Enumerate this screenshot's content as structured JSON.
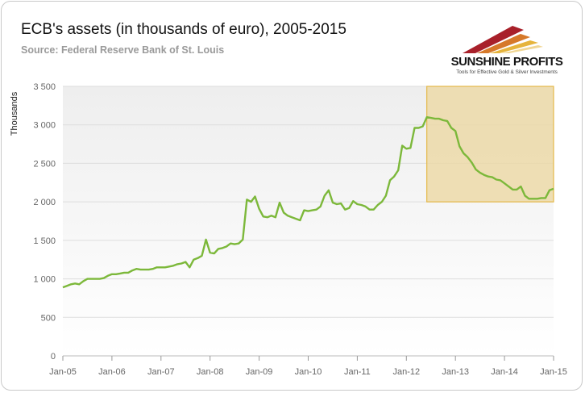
{
  "header": {
    "title": "ECB's assets (in thousands of euro), 2005-2015",
    "subtitle": "Source: Federal Reserve Bank of St. Louis"
  },
  "logo": {
    "name": "SUNSHINE PROFITS",
    "tagline": "Tools for Effective Gold & Silver Investments"
  },
  "colors": {
    "line": "#7cb83a",
    "highlight_fill": "#ecd9a8",
    "highlight_stroke": "#e4b94a",
    "grid": "#dddddd",
    "plot_bg_top": "#eeeeee",
    "plot_bg_bottom": "#ffffff"
  },
  "chart_data": {
    "type": "line",
    "ylabel": "Thousands",
    "xlabel": "",
    "ylim": [
      0,
      3500
    ],
    "yticks": [
      0,
      500,
      1000,
      1500,
      2000,
      2500,
      3000,
      3500
    ],
    "ytick_labels": [
      "0",
      "500",
      "1 000",
      "1 500",
      "2 000",
      "2 500",
      "3 000",
      "3 500"
    ],
    "xlim": [
      "2005-01",
      "2015-01"
    ],
    "xtick_labels": [
      "Jan-05",
      "Jan-06",
      "Jan-07",
      "Jan-08",
      "Jan-09",
      "Jan-10",
      "Jan-11",
      "Jan-12",
      "Jan-13",
      "Jan-14",
      "Jan-15"
    ],
    "grid": true,
    "highlight_region": {
      "x": [
        "2012-06",
        "2015-01"
      ],
      "y": [
        2000,
        3500
      ]
    },
    "series": [
      {
        "x": [
          "2005-01",
          "2005-02",
          "2005-03",
          "2005-04",
          "2005-05",
          "2005-06",
          "2005-07",
          "2005-08",
          "2005-09",
          "2005-10",
          "2005-11",
          "2005-12",
          "2006-01",
          "2006-02",
          "2006-03",
          "2006-04",
          "2006-05",
          "2006-06",
          "2006-07",
          "2006-08",
          "2006-09",
          "2006-10",
          "2006-11",
          "2006-12",
          "2007-01",
          "2007-02",
          "2007-03",
          "2007-04",
          "2007-05",
          "2007-06",
          "2007-07",
          "2007-08",
          "2007-09",
          "2007-10",
          "2007-11",
          "2007-12",
          "2008-01",
          "2008-02",
          "2008-03",
          "2008-04",
          "2008-05",
          "2008-06",
          "2008-07",
          "2008-08",
          "2008-09",
          "2008-10",
          "2008-11",
          "2008-12",
          "2009-01",
          "2009-02",
          "2009-03",
          "2009-04",
          "2009-05",
          "2009-06",
          "2009-07",
          "2009-08",
          "2009-09",
          "2009-10",
          "2009-11",
          "2009-12",
          "2010-01",
          "2010-02",
          "2010-03",
          "2010-04",
          "2010-05",
          "2010-06",
          "2010-07",
          "2010-08",
          "2010-09",
          "2010-10",
          "2010-11",
          "2010-12",
          "2011-01",
          "2011-02",
          "2011-03",
          "2011-04",
          "2011-05",
          "2011-06",
          "2011-07",
          "2011-08",
          "2011-09",
          "2011-10",
          "2011-11",
          "2011-12",
          "2012-01",
          "2012-02",
          "2012-03",
          "2012-04",
          "2012-05",
          "2012-06",
          "2012-07",
          "2012-08",
          "2012-09",
          "2012-10",
          "2012-11",
          "2012-12",
          "2013-01",
          "2013-02",
          "2013-03",
          "2013-04",
          "2013-05",
          "2013-06",
          "2013-07",
          "2013-08",
          "2013-09",
          "2013-10",
          "2013-11",
          "2013-12",
          "2014-01",
          "2014-02",
          "2014-03",
          "2014-04",
          "2014-05",
          "2014-06",
          "2014-07",
          "2014-08",
          "2014-09",
          "2014-10",
          "2014-11",
          "2014-12",
          "2015-01"
        ],
        "values": [
          890,
          910,
          930,
          940,
          930,
          970,
          1000,
          1000,
          1000,
          1000,
          1010,
          1040,
          1060,
          1060,
          1070,
          1080,
          1080,
          1110,
          1130,
          1120,
          1120,
          1120,
          1130,
          1150,
          1150,
          1150,
          1160,
          1170,
          1190,
          1200,
          1220,
          1150,
          1250,
          1270,
          1300,
          1510,
          1340,
          1330,
          1390,
          1400,
          1420,
          1460,
          1450,
          1460,
          1510,
          2030,
          2000,
          2070,
          1910,
          1810,
          1800,
          1820,
          1800,
          1990,
          1860,
          1820,
          1800,
          1780,
          1760,
          1890,
          1880,
          1890,
          1900,
          1940,
          2080,
          2150,
          1990,
          1970,
          1980,
          1900,
          1920,
          2010,
          1970,
          1960,
          1940,
          1900,
          1900,
          1960,
          2000,
          2080,
          2280,
          2330,
          2410,
          2730,
          2690,
          2700,
          2960,
          2960,
          2980,
          3100,
          3090,
          3080,
          3080,
          3060,
          3050,
          2960,
          2920,
          2720,
          2630,
          2580,
          2510,
          2420,
          2380,
          2350,
          2330,
          2320,
          2290,
          2280,
          2240,
          2200,
          2160,
          2160,
          2200,
          2080,
          2040,
          2040,
          2040,
          2050,
          2050,
          2150,
          2170
        ]
      }
    ]
  }
}
